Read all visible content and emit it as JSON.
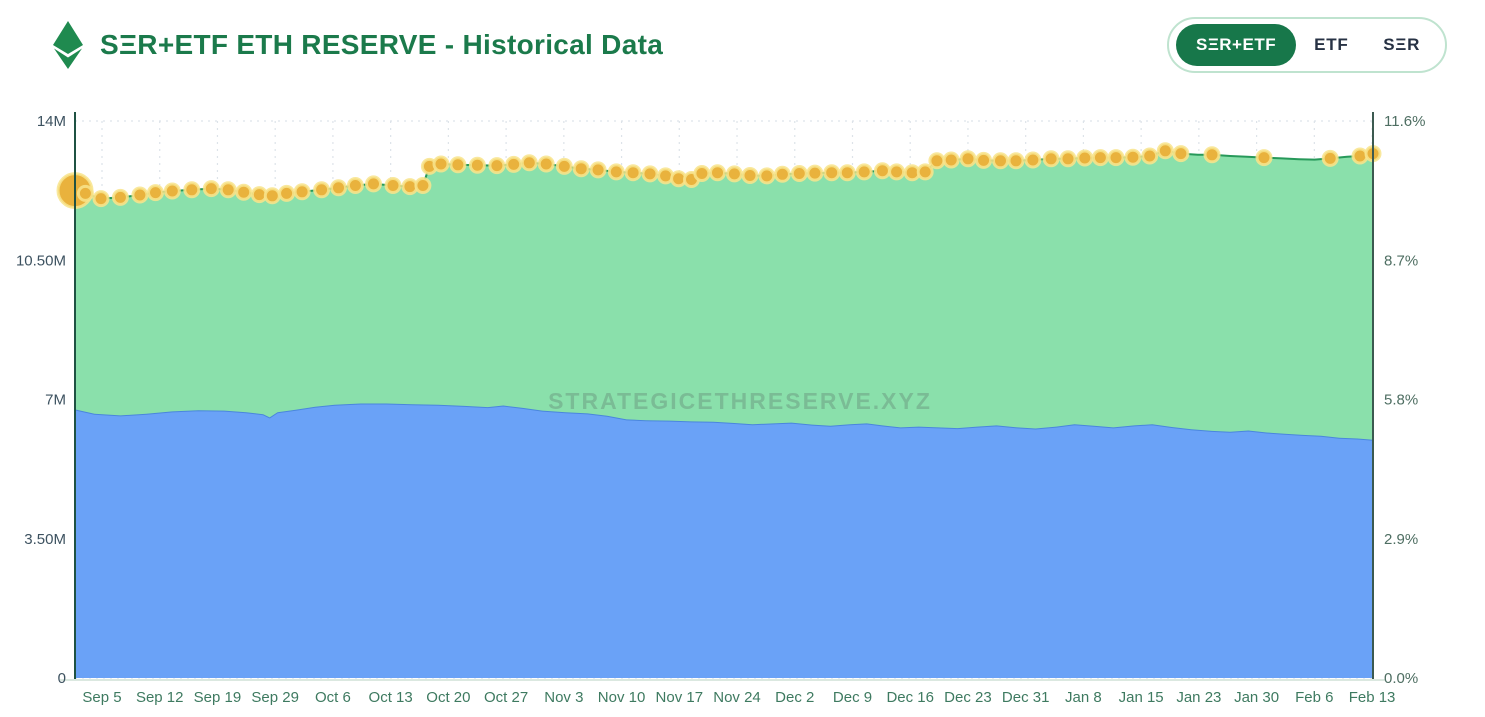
{
  "header": {
    "title": "SΞR+ETF ETH RESERVE - Historical Data",
    "logo": "ethereum-diamond",
    "toggle": {
      "options": [
        {
          "label": "SΞR+ETF",
          "active": true
        },
        {
          "label": "ETF",
          "active": false
        },
        {
          "label": "SΞR",
          "active": false
        }
      ]
    }
  },
  "watermark": "STRATEGICETHRESERVE.XYZ",
  "colors": {
    "brand_green": "#1b7a4b",
    "selected_pill": "#17774a",
    "toggle_border": "#bfe3cf",
    "area_green_fill": "#8ae0ab",
    "area_green_line": "#27995a",
    "area_blue_fill": "#6aa2f7",
    "area_blue_line": "#4a86dd",
    "marker_fill": "#e9b23d",
    "marker_ring": "rgba(248,228,140,0.85)",
    "gridline": "#dde3e9",
    "axis_line_left": "#1f5243",
    "axis_line_right": "#3c5a50",
    "axis_line_bottom": "#cfe0d5",
    "y_left_label": "#3d5260",
    "y_right_label": "#4e6e62",
    "x_label": "#3e7a60",
    "watermark": "#6b9a80"
  },
  "chart_data": {
    "type": "area",
    "stacked": true,
    "title": "SΞR+ETF ETH RESERVE - Historical Data",
    "unit": "million ETH",
    "legend_position": "none",
    "grid": "dotted",
    "y_axis_left": {
      "ticks": [
        "14M",
        "10.50M",
        "7M",
        "3.50M",
        "0"
      ],
      "values_m": [
        14,
        10.5,
        7,
        3.5,
        0
      ],
      "range_m": [
        0,
        14
      ]
    },
    "y_axis_right": {
      "ticks": [
        "11.6%",
        "8.7%",
        "5.8%",
        "2.9%",
        "0.0%"
      ],
      "values_pct": [
        11.6,
        8.7,
        5.8,
        2.9,
        0.0
      ],
      "range_pct": [
        0,
        11.6
      ]
    },
    "x_ticks": [
      "Sep 5",
      "Sep 12",
      "Sep 19",
      "Sep 29",
      "Oct 6",
      "Oct 13",
      "Oct 20",
      "Oct 27",
      "Nov 3",
      "Nov 10",
      "Nov 17",
      "Nov 24",
      "Dec 2",
      "Dec 9",
      "Dec 16",
      "Dec 23",
      "Dec 31",
      "Jan 8",
      "Jan 15",
      "Jan 23",
      "Jan 30",
      "Feb 6",
      "Feb 13"
    ],
    "x_range": [
      "Sep 5",
      "Feb 13"
    ],
    "series": [
      {
        "name": "ETF",
        "role": "bottom-stack",
        "color": "#6aa2f7",
        "points": [
          [
            0.0,
            6.75
          ],
          [
            0.015,
            6.64
          ],
          [
            0.035,
            6.6
          ],
          [
            0.055,
            6.64
          ],
          [
            0.075,
            6.7
          ],
          [
            0.095,
            6.73
          ],
          [
            0.115,
            6.72
          ],
          [
            0.132,
            6.68
          ],
          [
            0.145,
            6.63
          ],
          [
            0.15,
            6.55
          ],
          [
            0.156,
            6.68
          ],
          [
            0.17,
            6.74
          ],
          [
            0.185,
            6.82
          ],
          [
            0.2,
            6.87
          ],
          [
            0.22,
            6.9
          ],
          [
            0.24,
            6.9
          ],
          [
            0.26,
            6.88
          ],
          [
            0.28,
            6.87
          ],
          [
            0.3,
            6.84
          ],
          [
            0.318,
            6.81
          ],
          [
            0.33,
            6.85
          ],
          [
            0.345,
            6.79
          ],
          [
            0.36,
            6.72
          ],
          [
            0.378,
            6.68
          ],
          [
            0.395,
            6.65
          ],
          [
            0.41,
            6.59
          ],
          [
            0.425,
            6.5
          ],
          [
            0.44,
            6.48
          ],
          [
            0.458,
            6.47
          ],
          [
            0.475,
            6.45
          ],
          [
            0.492,
            6.44
          ],
          [
            0.508,
            6.41
          ],
          [
            0.522,
            6.38
          ],
          [
            0.538,
            6.4
          ],
          [
            0.552,
            6.42
          ],
          [
            0.568,
            6.37
          ],
          [
            0.582,
            6.34
          ],
          [
            0.597,
            6.38
          ],
          [
            0.61,
            6.4
          ],
          [
            0.622,
            6.35
          ],
          [
            0.636,
            6.3
          ],
          [
            0.65,
            6.32
          ],
          [
            0.665,
            6.3
          ],
          [
            0.68,
            6.28
          ],
          [
            0.695,
            6.32
          ],
          [
            0.71,
            6.35
          ],
          [
            0.726,
            6.3
          ],
          [
            0.74,
            6.27
          ],
          [
            0.756,
            6.32
          ],
          [
            0.77,
            6.38
          ],
          [
            0.785,
            6.34
          ],
          [
            0.8,
            6.3
          ],
          [
            0.816,
            6.35
          ],
          [
            0.83,
            6.38
          ],
          [
            0.845,
            6.31
          ],
          [
            0.86,
            6.25
          ],
          [
            0.876,
            6.21
          ],
          [
            0.89,
            6.19
          ],
          [
            0.904,
            6.22
          ],
          [
            0.918,
            6.17
          ],
          [
            0.932,
            6.14
          ],
          [
            0.946,
            6.11
          ],
          [
            0.96,
            6.09
          ],
          [
            0.974,
            6.04
          ],
          [
            0.988,
            6.02
          ],
          [
            1.0,
            5.99
          ]
        ]
      },
      {
        "name": "SΞR+ETF total",
        "role": "stack-top",
        "color": "#8ae0ab",
        "points": [
          [
            0.0,
            12.25
          ],
          [
            0.008,
            12.18
          ],
          [
            0.02,
            12.05
          ],
          [
            0.035,
            12.08
          ],
          [
            0.05,
            12.14
          ],
          [
            0.062,
            12.2
          ],
          [
            0.075,
            12.24
          ],
          [
            0.09,
            12.27
          ],
          [
            0.105,
            12.3
          ],
          [
            0.118,
            12.27
          ],
          [
            0.13,
            12.21
          ],
          [
            0.142,
            12.15
          ],
          [
            0.152,
            12.12
          ],
          [
            0.163,
            12.18
          ],
          [
            0.175,
            12.22
          ],
          [
            0.19,
            12.27
          ],
          [
            0.203,
            12.32
          ],
          [
            0.216,
            12.38
          ],
          [
            0.23,
            12.42
          ],
          [
            0.245,
            12.38
          ],
          [
            0.258,
            12.35
          ],
          [
            0.268,
            12.38
          ],
          [
            0.273,
            12.86
          ],
          [
            0.282,
            12.92
          ],
          [
            0.295,
            12.9
          ],
          [
            0.31,
            12.89
          ],
          [
            0.325,
            12.88
          ],
          [
            0.338,
            12.91
          ],
          [
            0.35,
            12.95
          ],
          [
            0.363,
            12.92
          ],
          [
            0.377,
            12.86
          ],
          [
            0.39,
            12.8
          ],
          [
            0.403,
            12.77
          ],
          [
            0.417,
            12.72
          ],
          [
            0.43,
            12.7
          ],
          [
            0.443,
            12.67
          ],
          [
            0.455,
            12.62
          ],
          [
            0.465,
            12.55
          ],
          [
            0.475,
            12.53
          ],
          [
            0.483,
            12.68
          ],
          [
            0.495,
            12.7
          ],
          [
            0.508,
            12.67
          ],
          [
            0.52,
            12.63
          ],
          [
            0.533,
            12.62
          ],
          [
            0.545,
            12.66
          ],
          [
            0.558,
            12.68
          ],
          [
            0.57,
            12.69
          ],
          [
            0.583,
            12.7
          ],
          [
            0.595,
            12.7
          ],
          [
            0.608,
            12.72
          ],
          [
            0.622,
            12.75
          ],
          [
            0.633,
            12.72
          ],
          [
            0.645,
            12.7
          ],
          [
            0.655,
            12.72
          ],
          [
            0.664,
            13.0
          ],
          [
            0.675,
            13.02
          ],
          [
            0.688,
            13.05
          ],
          [
            0.7,
            13.01
          ],
          [
            0.713,
            13.0
          ],
          [
            0.725,
            13.0
          ],
          [
            0.738,
            13.02
          ],
          [
            0.752,
            13.05
          ],
          [
            0.765,
            13.05
          ],
          [
            0.778,
            13.07
          ],
          [
            0.79,
            13.08
          ],
          [
            0.802,
            13.08
          ],
          [
            0.815,
            13.09
          ],
          [
            0.828,
            13.12
          ],
          [
            0.84,
            13.25
          ],
          [
            0.852,
            13.18
          ],
          [
            0.865,
            13.15
          ],
          [
            0.876,
            13.15
          ],
          [
            0.89,
            13.12
          ],
          [
            0.903,
            13.1
          ],
          [
            0.916,
            13.08
          ],
          [
            0.93,
            13.06
          ],
          [
            0.943,
            13.04
          ],
          [
            0.955,
            13.03
          ],
          [
            0.967,
            13.06
          ],
          [
            0.98,
            13.1
          ],
          [
            0.99,
            13.12
          ],
          [
            1.0,
            13.18
          ]
        ]
      }
    ],
    "markers": {
      "on_series": "SΞR+ETF total",
      "color": "#e9b23d",
      "first_radius": 17,
      "radius": 7,
      "dense_through": 69,
      "sparse_indices": [
        71,
        74,
        78,
        80,
        81
      ]
    }
  }
}
